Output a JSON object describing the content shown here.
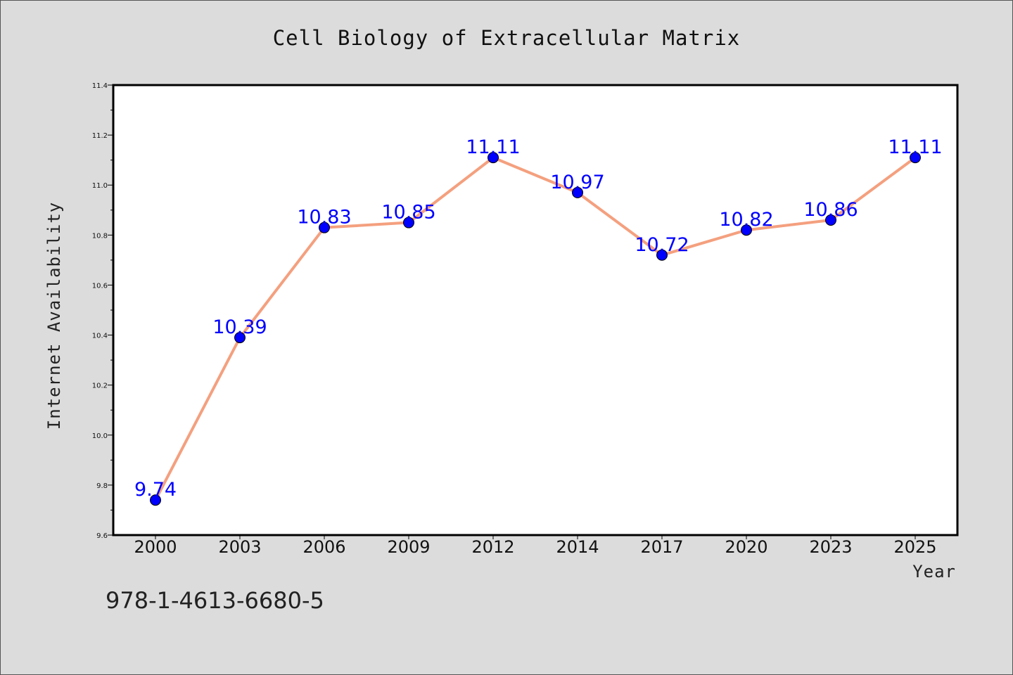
{
  "chart_data": {
    "type": "line",
    "title": "Cell Biology of Extracellular Matrix",
    "xlabel": "Year",
    "ylabel": "Internet Availability",
    "categories": [
      "2000",
      "2003",
      "2006",
      "2009",
      "2012",
      "2014",
      "2017",
      "2020",
      "2023",
      "2025"
    ],
    "series": [
      {
        "values": [
          9.74,
          10.39,
          10.83,
          10.85,
          11.11,
          10.97,
          10.72,
          10.82,
          10.86,
          11.11
        ],
        "line_color": "#f4a07f",
        "marker_color": "#0000ff"
      }
    ],
    "data_labels": [
      "9.74",
      "10.39",
      "10.83",
      "10.85",
      "11.11",
      "10.97",
      "10.72",
      "10.82",
      "10.86",
      "11.11"
    ],
    "ylim": [
      9.6,
      11.4
    ],
    "yticks": [
      "9.6",
      "9.8",
      "10.0",
      "10.2",
      "10.4",
      "10.6",
      "10.8",
      "11.0",
      "11.2",
      "11.4"
    ],
    "grid": false,
    "legend": "none"
  },
  "footer": {
    "isbn": "978-1-4613-6680-5"
  }
}
